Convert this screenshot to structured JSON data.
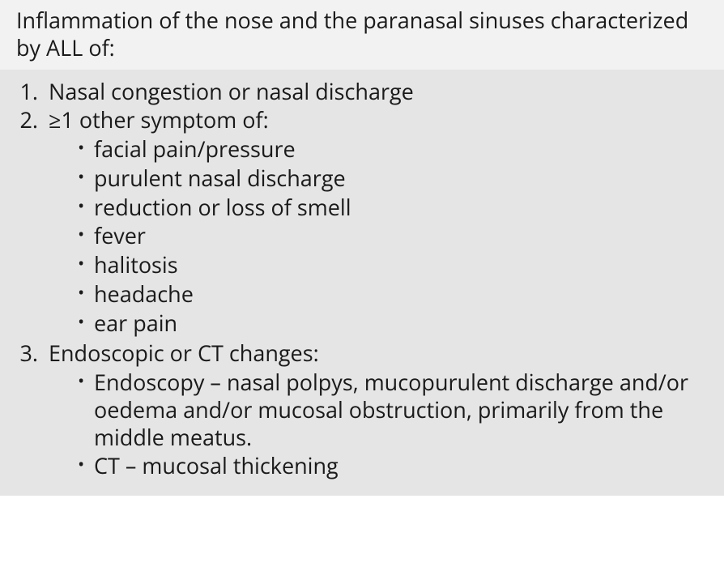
{
  "colors": {
    "header_bg": "#f2f2f2",
    "body_bg": "#e5e5e5",
    "text": "#1a1a1a"
  },
  "typography": {
    "font_family": "Myriad Pro / Segoe UI / Helvetica-like sans-serif",
    "font_size_pt": 20,
    "line_height": 1.25
  },
  "header": {
    "text": "Inflammation of the nose and the paranasal sinuses characterized by ALL of:"
  },
  "criteria": [
    {
      "text": "Nasal congestion or nasal discharge",
      "sub": []
    },
    {
      "text": "≥1 other symptom of:",
      "sub": [
        "facial pain/pressure",
        "purulent nasal discharge",
        "reduction or loss of smell",
        "fever",
        "halitosis",
        "headache",
        "ear pain"
      ]
    },
    {
      "text": "Endoscopic or CT changes:",
      "sub": [
        "Endoscopy – nasal polpys, mucopurulent discharge and/or oedema and/or mucosal obstruction, primarily from the middle meatus.",
        "CT – mucosal thickening"
      ]
    }
  ]
}
